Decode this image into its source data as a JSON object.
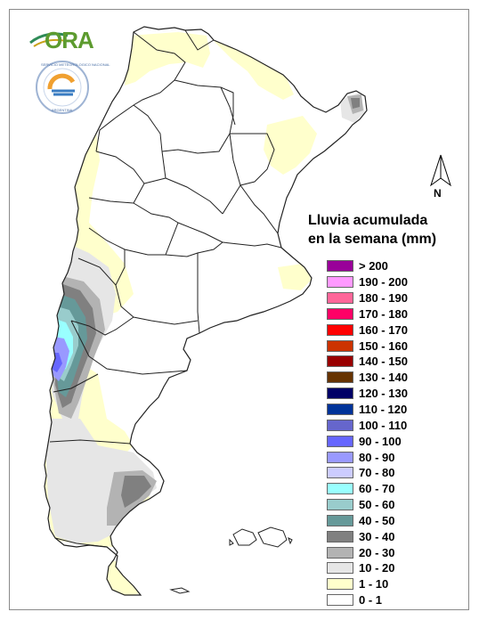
{
  "map": {
    "title_line1": "Lluvia acumulada",
    "title_line2": "en la semana (mm)",
    "north_label": "N",
    "logo_text": "ORA",
    "agency_ring_text": "SERVICIO METEOROLOGICO NACIONAL",
    "agency_country": "ARGENTINA",
    "colors": {
      "border": "#222222",
      "province_line": "#222222",
      "cls_1_10": "#ffffcc",
      "cls_10_20": "#e6e6e6",
      "cls_20_30": "#b3b3b3",
      "cls_30_40": "#808080",
      "cls_40_50": "#669999",
      "cls_50_60": "#99cccc",
      "cls_60_70": "#99ffff",
      "cls_80_90": "#9999ff",
      "cls_90_100": "#6666ff"
    }
  },
  "legend": {
    "items": [
      {
        "label": "> 200",
        "color": "#990099"
      },
      {
        "label": "190 - 200",
        "color": "#ff99ff"
      },
      {
        "label": "180 - 190",
        "color": "#ff6699"
      },
      {
        "label": "170 - 180",
        "color": "#ff0066"
      },
      {
        "label": "160 - 170",
        "color": "#ff0000"
      },
      {
        "label": "150 - 160",
        "color": "#cc3300"
      },
      {
        "label": "140 - 150",
        "color": "#990000"
      },
      {
        "label": "130 - 140",
        "color": "#663300"
      },
      {
        "label": "120 - 130",
        "color": "#000066"
      },
      {
        "label": "110 - 120",
        "color": "#003399"
      },
      {
        "label": "100 - 110",
        "color": "#6666cc"
      },
      {
        "label": "90 - 100",
        "color": "#6666ff"
      },
      {
        "label": "80 - 90",
        "color": "#9999ff"
      },
      {
        "label": "70 - 80",
        "color": "#ccccff"
      },
      {
        "label": "60 - 70",
        "color": "#99ffff"
      },
      {
        "label": "50 - 60",
        "color": "#99cccc"
      },
      {
        "label": "40 - 50",
        "color": "#669999"
      },
      {
        "label": "30 - 40",
        "color": "#808080"
      },
      {
        "label": "20 - 30",
        "color": "#b3b3b3"
      },
      {
        "label": "10 - 20",
        "color": "#e6e6e6"
      },
      {
        "label": "1 - 10",
        "color": "#ffffcc"
      },
      {
        "label": "0 - 1",
        "color": "#ffffff"
      }
    ]
  }
}
